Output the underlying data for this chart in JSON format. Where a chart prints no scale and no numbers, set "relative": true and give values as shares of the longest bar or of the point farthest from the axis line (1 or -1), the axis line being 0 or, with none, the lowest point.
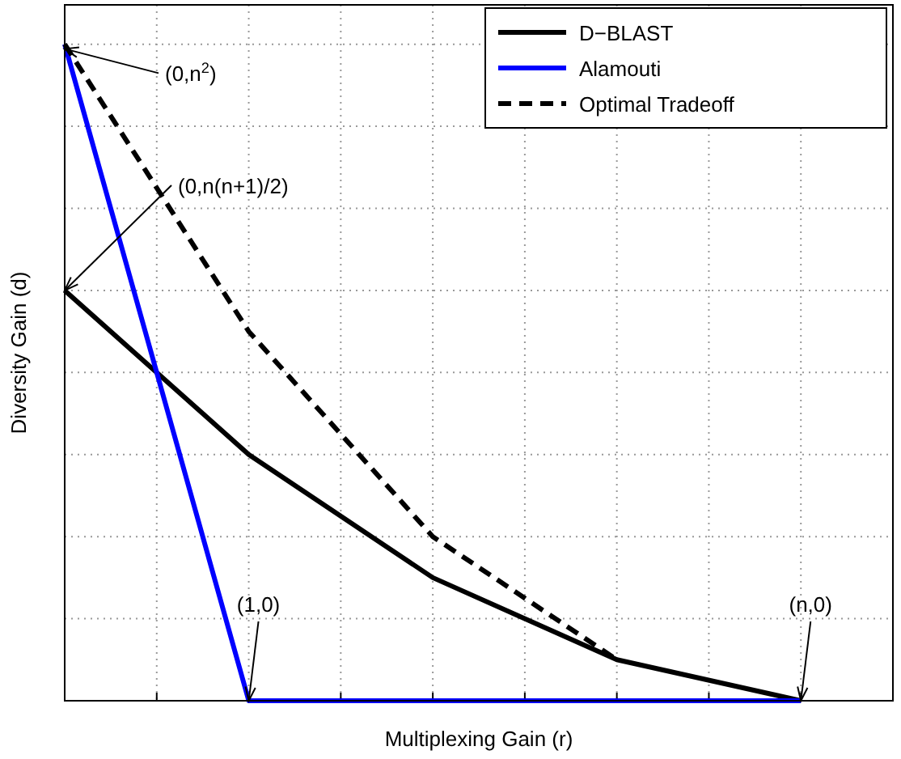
{
  "chart_data": {
    "type": "line",
    "relative": true,
    "xlabel": "Multiplexing Gain (r)",
    "ylabel": "Diversity Gain (d)",
    "categories": [
      null,
      null,
      null,
      null,
      null
    ],
    "grid": true,
    "legend": "top right",
    "series": [
      {
        "name": "D−BLAST",
        "color": "#000000",
        "values": [
          0.625,
          0.375,
          0.1875,
          0.0625,
          0
        ]
      },
      {
        "name": "Alamouti",
        "color": "#0000ff",
        "values": [
          1,
          0,
          0,
          0,
          0
        ]
      },
      {
        "name": "Optimal Tradeoff",
        "color": "#000000",
        "line_style": "dashed",
        "values": [
          1,
          0.5625,
          0.25,
          0.0625,
          null
        ]
      }
    ],
    "annotations": [
      "(0,n$^{2}$)",
      "(0,n(n+1)/2)",
      "(1,0)",
      "(n,0)"
    ]
  }
}
